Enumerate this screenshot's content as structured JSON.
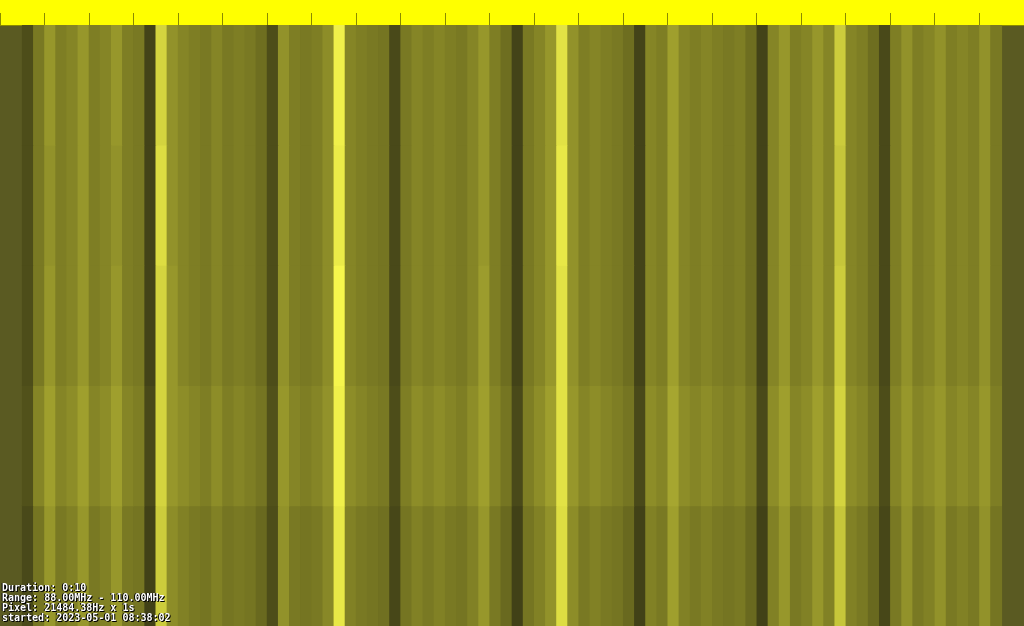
{
  "chart_data": {
    "type": "heatmap",
    "x_bins": [
      88,
      88.25,
      88.5,
      88.75,
      89,
      89.25,
      89.5,
      89.75,
      90,
      90.25,
      90.5,
      90.75,
      91,
      91.25,
      91.5,
      91.75,
      92,
      92.25,
      92.5,
      92.75,
      93,
      93.25,
      93.5,
      93.75,
      94,
      94.25,
      94.5,
      94.75,
      95,
      95.25,
      95.5,
      95.75,
      96,
      96.25,
      96.5,
      96.75,
      97,
      97.25,
      97.5,
      97.75,
      98,
      98.25,
      98.5,
      98.75,
      99,
      99.25,
      99.5,
      99.75,
      100,
      100.25,
      100.5,
      100.75,
      101,
      101.25,
      101.5,
      101.75,
      102,
      102.25,
      102.5,
      102.75,
      103,
      103.25,
      103.5,
      103.75,
      104,
      104.25,
      104.5,
      104.75,
      105,
      105.25,
      105.5,
      105.75,
      106,
      106.25,
      106.5,
      106.75,
      107,
      107.25,
      107.5,
      107.75,
      108,
      108.25,
      108.5,
      108.75,
      109,
      109.25,
      109.5,
      109.75,
      110
    ],
    "y_bins": [
      0,
      2,
      4,
      6,
      8,
      10
    ],
    "xlim": [
      88,
      110
    ],
    "xticks": [
      88,
      89,
      90,
      91,
      92,
      93,
      94,
      95,
      96,
      97,
      98,
      99,
      100,
      101,
      102,
      103,
      104,
      105,
      106,
      107,
      108,
      109,
      110
    ],
    "ylim": [
      0,
      10
    ],
    "tick_labels": false,
    "grid": false,
    "color_range": [
      0,
      100
    ],
    "cells": [
      [
        30,
        50,
        62,
        52,
        55,
        62,
        52,
        55,
        62,
        52,
        50,
        25,
        85,
        60,
        55,
        52,
        50,
        55,
        50,
        52,
        50,
        45,
        30,
        60,
        52,
        50,
        52,
        58,
        95,
        55,
        52,
        50,
        48,
        28,
        50,
        55,
        52,
        55,
        52,
        50,
        55,
        62,
        52,
        45,
        25,
        50,
        55,
        62,
        90,
        60,
        52,
        55,
        52,
        50,
        45,
        25,
        55,
        52,
        65,
        55,
        52,
        55,
        52,
        50,
        52,
        45,
        25,
        55,
        62,
        52,
        55,
        62,
        55,
        82,
        55,
        52,
        45,
        28,
        52,
        60,
        52,
        55,
        60,
        52,
        55,
        52,
        60,
        50
      ],
      [
        30,
        50,
        60,
        52,
        55,
        62,
        52,
        55,
        60,
        52,
        50,
        25,
        88,
        60,
        55,
        52,
        50,
        55,
        50,
        52,
        50,
        45,
        30,
        60,
        52,
        50,
        52,
        58,
        93,
        55,
        52,
        50,
        48,
        28,
        50,
        55,
        52,
        55,
        52,
        50,
        55,
        62,
        52,
        45,
        25,
        50,
        55,
        62,
        92,
        60,
        52,
        55,
        52,
        50,
        45,
        25,
        55,
        52,
        65,
        55,
        52,
        55,
        52,
        50,
        52,
        45,
        25,
        55,
        62,
        52,
        55,
        62,
        55,
        80,
        55,
        52,
        45,
        28,
        52,
        60,
        52,
        55,
        60,
        52,
        55,
        52,
        60,
        50
      ],
      [
        30,
        50,
        62,
        52,
        55,
        62,
        52,
        55,
        62,
        52,
        50,
        25,
        85,
        62,
        55,
        52,
        50,
        55,
        50,
        52,
        50,
        45,
        30,
        60,
        52,
        50,
        52,
        58,
        97,
        55,
        52,
        50,
        48,
        28,
        50,
        55,
        52,
        55,
        52,
        50,
        55,
        64,
        52,
        45,
        25,
        50,
        55,
        62,
        90,
        60,
        52,
        55,
        52,
        50,
        45,
        25,
        55,
        52,
        65,
        55,
        52,
        55,
        52,
        50,
        52,
        45,
        25,
        55,
        62,
        52,
        55,
        62,
        55,
        82,
        55,
        52,
        45,
        28,
        52,
        60,
        52,
        55,
        60,
        52,
        55,
        52,
        60,
        50
      ],
      [
        32,
        55,
        65,
        55,
        58,
        65,
        55,
        58,
        65,
        55,
        52,
        28,
        85,
        62,
        58,
        55,
        52,
        58,
        52,
        55,
        52,
        48,
        32,
        62,
        55,
        52,
        55,
        60,
        95,
        58,
        55,
        52,
        50,
        30,
        52,
        58,
        55,
        58,
        55,
        52,
        58,
        65,
        55,
        48,
        28,
        52,
        58,
        65,
        90,
        62,
        55,
        58,
        55,
        52,
        48,
        28,
        58,
        55,
        68,
        58,
        55,
        58,
        55,
        52,
        55,
        48,
        28,
        58,
        65,
        55,
        58,
        65,
        58,
        85,
        58,
        55,
        48,
        30,
        55,
        62,
        55,
        58,
        62,
        55,
        58,
        55,
        62,
        52
      ],
      [
        28,
        48,
        62,
        50,
        53,
        62,
        50,
        53,
        62,
        50,
        48,
        24,
        82,
        58,
        53,
        50,
        48,
        53,
        48,
        50,
        48,
        43,
        30,
        60,
        50,
        48,
        50,
        56,
        92,
        53,
        50,
        48,
        46,
        27,
        48,
        53,
        50,
        53,
        50,
        48,
        53,
        62,
        50,
        43,
        24,
        48,
        53,
        60,
        88,
        58,
        50,
        53,
        50,
        48,
        43,
        24,
        53,
        50,
        65,
        53,
        50,
        53,
        50,
        48,
        50,
        43,
        24,
        53,
        62,
        50,
        53,
        62,
        53,
        80,
        53,
        50,
        43,
        27,
        50,
        60,
        50,
        53,
        60,
        50,
        53,
        50,
        60,
        48
      ]
    ],
    "annotations": [
      "Duration: 0:10",
      "Range: 88.00MHz - 110.00MHz",
      "Pixel: 21484.38Hz x 1s",
      "started: 2023-05-01 08:38:02"
    ]
  }
}
